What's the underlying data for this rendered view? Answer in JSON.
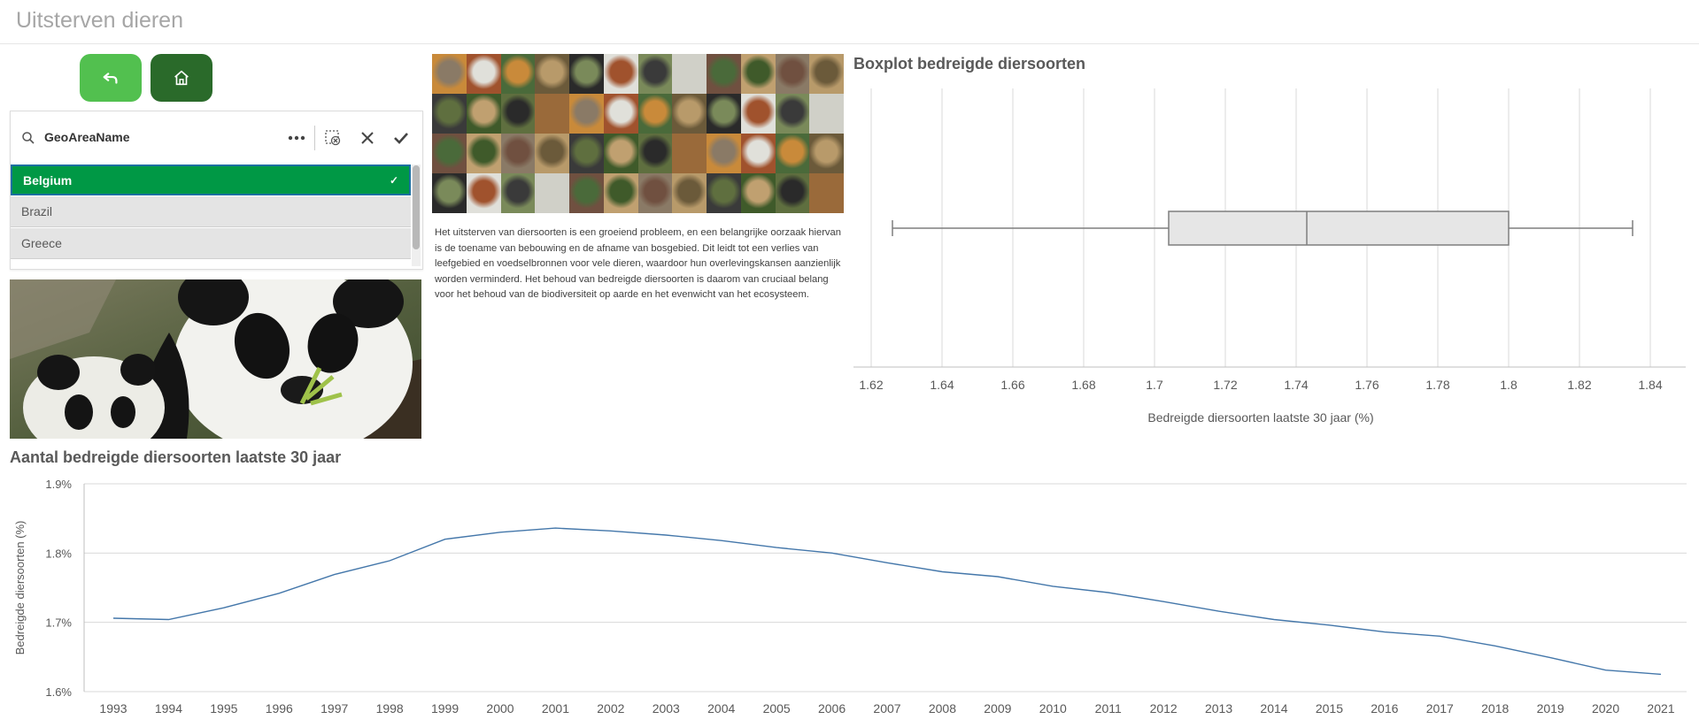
{
  "app": {
    "title": "Uitsterven dieren"
  },
  "nav": {
    "back_icon": "back-arrow-icon",
    "home_icon": "home-icon",
    "back_color": "#52c04f",
    "home_color": "#2a6a2a"
  },
  "filter": {
    "title": "GeoAreaName",
    "items": [
      {
        "label": "Belgium",
        "selected": true
      },
      {
        "label": "Brazil",
        "selected": false
      },
      {
        "label": "Greece",
        "selected": false
      }
    ],
    "selected_color": "#009845"
  },
  "description": "Het uitsterven van diersoorten is een groeiend probleem, en een belangrijke oorzaak hiervan is de toename van bebouwing en de afname van bosgebied. Dit leidt tot een verlies van leefgebied en voedselbronnen voor vele dieren, waardoor hun overlevingskansen aanzienlijk worden verminderd. Het behoud van bedreigde diersoorten is daarom van cruciaal belang voor het behoud van de biodiversiteit op aarde en het evenwicht van het ecosysteem.",
  "chart_data": [
    {
      "type": "boxplot",
      "title": "Boxplot bedreigde diersoorten",
      "xlabel": "Bedreigde diersoorten laatste 30 jaar (%)",
      "xlim": [
        1.615,
        1.85
      ],
      "ticks": [
        "1.62",
        "1.64",
        "1.66",
        "1.68",
        "1.7",
        "1.72",
        "1.74",
        "1.76",
        "1.78",
        "1.8",
        "1.82",
        "1.84"
      ],
      "tick_values": [
        1.62,
        1.64,
        1.66,
        1.68,
        1.7,
        1.72,
        1.74,
        1.76,
        1.78,
        1.8,
        1.82,
        1.84
      ],
      "whisker_low": 1.626,
      "q1": 1.704,
      "median": 1.743,
      "q3": 1.8,
      "whisker_high": 1.835,
      "grid": true
    },
    {
      "type": "line",
      "title": "Aantal bedreigde diersoorten laatste 30 jaar",
      "ylabel": "Bedreigde diersoorten (%)",
      "xlabel": "",
      "ylim": [
        1.6,
        1.9
      ],
      "yticks": [
        "1.6%",
        "1.7%",
        "1.8%",
        "1.9%"
      ],
      "ytick_values": [
        1.6,
        1.7,
        1.8,
        1.9
      ],
      "x": [
        "1993",
        "1994",
        "1995",
        "1996",
        "1997",
        "1998",
        "1999",
        "2000",
        "2001",
        "2002",
        "2003",
        "2004",
        "2005",
        "2006",
        "2007",
        "2008",
        "2009",
        "2010",
        "2011",
        "2012",
        "2013",
        "2014",
        "2015",
        "2016",
        "2017",
        "2018",
        "2019",
        "2020",
        "2021"
      ],
      "series": [
        {
          "values": [
            1.706,
            1.704,
            1.721,
            1.742,
            1.769,
            1.789,
            1.82,
            1.83,
            1.836,
            1.832,
            1.826,
            1.818,
            1.808,
            1.8,
            1.786,
            1.773,
            1.766,
            1.752,
            1.743,
            1.73,
            1.716,
            1.704,
            1.696,
            1.686,
            1.68,
            1.666,
            1.649,
            1.631,
            1.625
          ],
          "color": "#4477aa"
        }
      ],
      "grid": true
    }
  ]
}
